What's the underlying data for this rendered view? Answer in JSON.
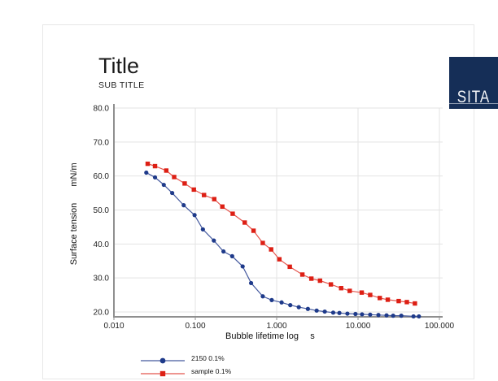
{
  "page": {
    "title": "Title",
    "subtitle": "SUB TITLE"
  },
  "logo": {
    "text": "SITA",
    "background": "#152e57"
  },
  "chart_data": {
    "type": "line",
    "title": "",
    "xlabel": "Bubble lifetime log",
    "xlabel_unit": "s",
    "ylabel": "Surface tension",
    "ylabel_unit": "mN/m",
    "x_scale": "log",
    "xlim": [
      0.01,
      100
    ],
    "ylim": [
      20,
      80
    ],
    "grid": true,
    "legend_position": "bottom-left",
    "x_ticks": [
      {
        "value": 0.01,
        "label": "0.010"
      },
      {
        "value": 0.1,
        "label": "0.100"
      },
      {
        "value": 1.0,
        "label": "1.000"
      },
      {
        "value": 10.0,
        "label": "10.000"
      },
      {
        "value": 100.0,
        "label": "100.000"
      }
    ],
    "y_ticks": [
      {
        "value": 20,
        "label": "20.0"
      },
      {
        "value": 30,
        "label": "30.0"
      },
      {
        "value": 40,
        "label": "40.0"
      },
      {
        "value": 50,
        "label": "50.0"
      },
      {
        "value": 60,
        "label": "60.0"
      },
      {
        "value": 70,
        "label": "70.0"
      },
      {
        "value": 80,
        "label": "80.0"
      }
    ],
    "series": [
      {
        "name": "2150 0.1%",
        "marker": "circle",
        "marker_color": "#1e3a8a",
        "line_color": "#44599e",
        "points": [
          [
            0.025,
            61.0
          ],
          [
            0.032,
            59.6
          ],
          [
            0.041,
            57.4
          ],
          [
            0.052,
            55.0
          ],
          [
            0.072,
            51.4
          ],
          [
            0.098,
            48.5
          ],
          [
            0.124,
            44.3
          ],
          [
            0.169,
            41.0
          ],
          [
            0.222,
            37.8
          ],
          [
            0.284,
            36.4
          ],
          [
            0.382,
            33.4
          ],
          [
            0.485,
            28.5
          ],
          [
            0.675,
            24.6
          ],
          [
            0.87,
            23.5
          ],
          [
            1.15,
            22.8
          ],
          [
            1.47,
            22.0
          ],
          [
            1.87,
            21.4
          ],
          [
            2.42,
            20.9
          ],
          [
            3.1,
            20.4
          ],
          [
            3.9,
            20.1
          ],
          [
            4.95,
            19.8
          ],
          [
            5.9,
            19.7
          ],
          [
            7.4,
            19.5
          ],
          [
            9.3,
            19.4
          ],
          [
            11.2,
            19.3
          ],
          [
            14.1,
            19.2
          ],
          [
            17.8,
            19.1
          ],
          [
            22.4,
            19.0
          ],
          [
            27,
            18.9
          ],
          [
            34,
            18.9
          ],
          [
            48,
            18.7
          ],
          [
            56,
            18.7
          ]
        ]
      },
      {
        "name": "sample 0.1%",
        "marker": "square",
        "marker_color": "#dd1f14",
        "line_color": "#e4564e",
        "points": [
          [
            0.026,
            63.6
          ],
          [
            0.032,
            62.9
          ],
          [
            0.044,
            61.6
          ],
          [
            0.055,
            59.7
          ],
          [
            0.074,
            57.8
          ],
          [
            0.096,
            56.0
          ],
          [
            0.128,
            54.4
          ],
          [
            0.171,
            53.2
          ],
          [
            0.215,
            51.0
          ],
          [
            0.288,
            48.9
          ],
          [
            0.405,
            46.3
          ],
          [
            0.52,
            43.9
          ],
          [
            0.675,
            40.3
          ],
          [
            0.855,
            38.4
          ],
          [
            1.08,
            35.5
          ],
          [
            1.45,
            33.3
          ],
          [
            2.07,
            31.0
          ],
          [
            2.67,
            29.8
          ],
          [
            3.41,
            29.2
          ],
          [
            4.64,
            28.1
          ],
          [
            6.2,
            27.0
          ],
          [
            7.9,
            26.2
          ],
          [
            11.1,
            25.7
          ],
          [
            14.1,
            25.0
          ],
          [
            18.5,
            24.1
          ],
          [
            23.2,
            23.6
          ],
          [
            31.6,
            23.2
          ],
          [
            39.8,
            22.9
          ],
          [
            50,
            22.5
          ]
        ]
      }
    ],
    "colors": {
      "gridline": "#e3e3e3",
      "axis": "#8f8f8f",
      "tick_text": "#222222"
    }
  }
}
